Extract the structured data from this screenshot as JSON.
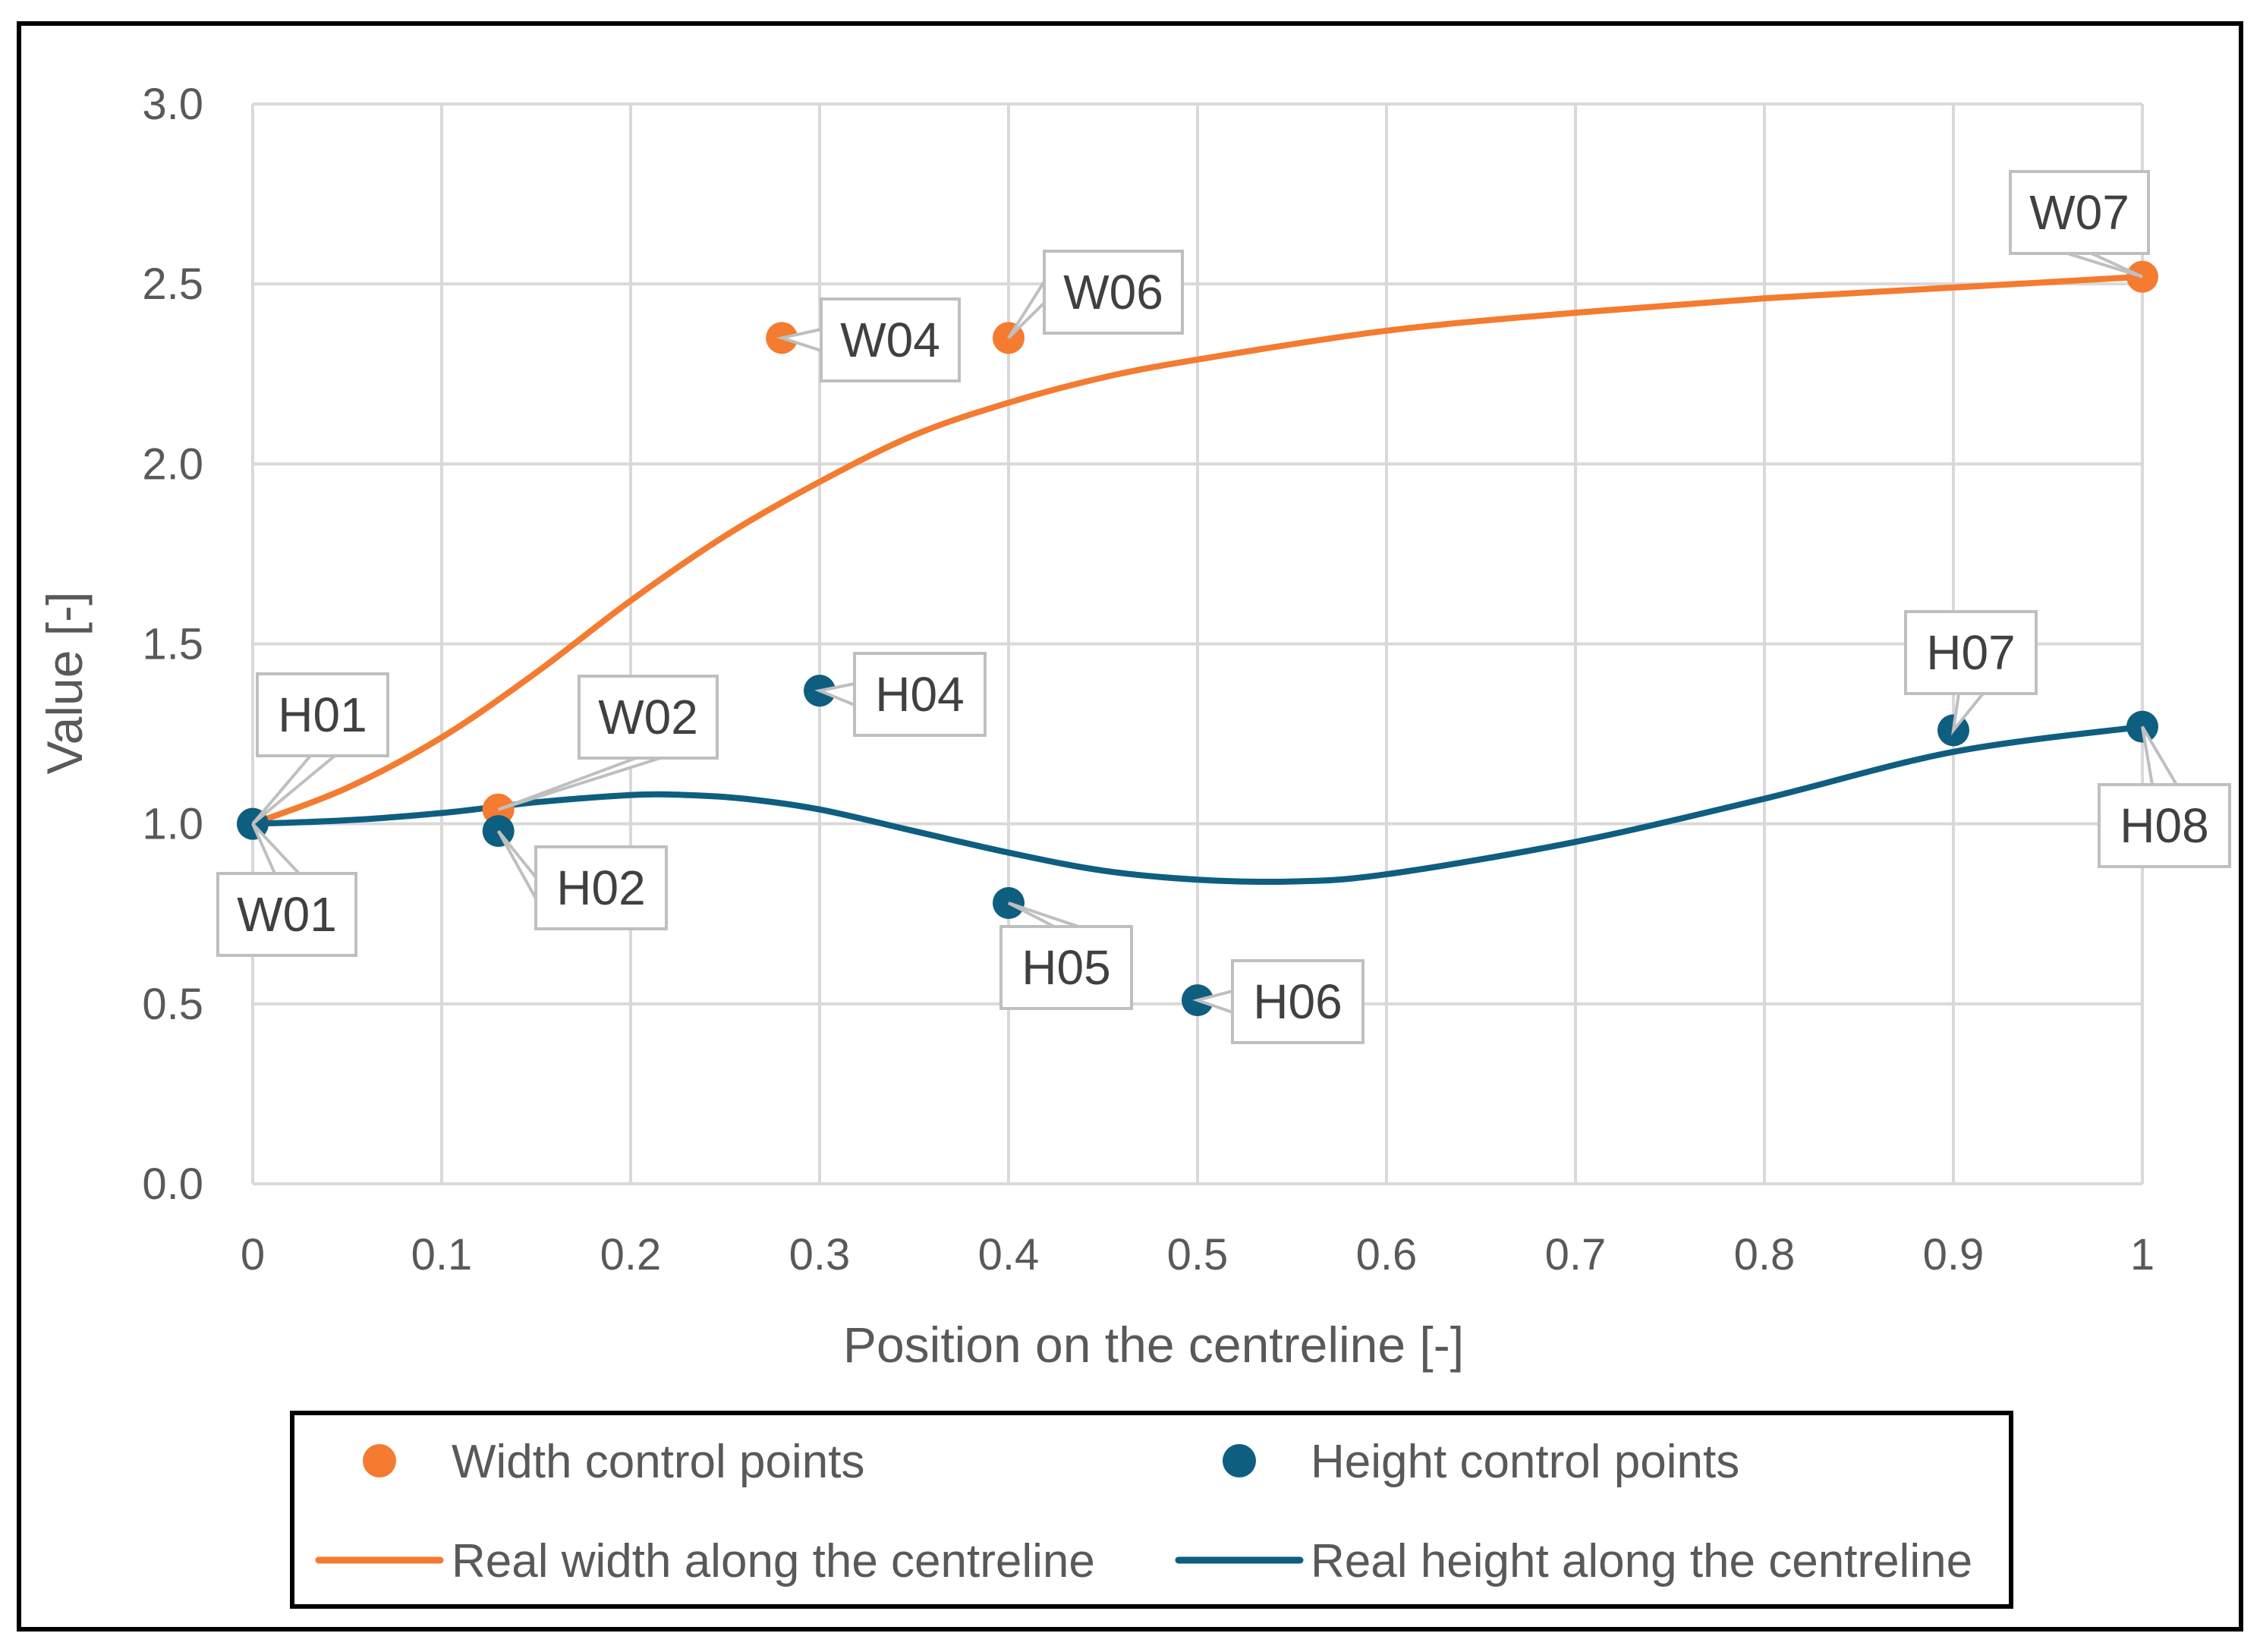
{
  "chart_data": {
    "type": "line",
    "title": "",
    "xlabel": "Position on the centreline [-]",
    "ylabel": "Value [-]",
    "xlim": [
      0,
      1
    ],
    "ylim": [
      0,
      3
    ],
    "x_ticks": [
      "0",
      "0.1",
      "0.2",
      "0.3",
      "0.4",
      "0.5",
      "0.6",
      "0.7",
      "0.8",
      "0.9",
      "1"
    ],
    "y_ticks": [
      "0.0",
      "0.5",
      "1.0",
      "1.5",
      "2.0",
      "2.5",
      "3.0"
    ],
    "grid": true,
    "legend_position": "bottom",
    "colors": {
      "width": "#F47B30",
      "height": "#0E5E80",
      "grid": "#d9d9d9",
      "frame": "#000000"
    },
    "scatter_series": [
      {
        "name": "Width control points",
        "color": "#F47B30",
        "points": [
          {
            "label": "W01",
            "x": 0.0,
            "y": 1.0
          },
          {
            "label": "W02",
            "x": 0.13,
            "y": 1.04
          },
          {
            "label": "W04",
            "x": 0.28,
            "y": 2.35
          },
          {
            "label": "W06",
            "x": 0.4,
            "y": 2.35
          },
          {
            "label": "W07",
            "x": 1.0,
            "y": 2.52
          }
        ]
      },
      {
        "name": "Height control points",
        "color": "#0E5E80",
        "points": [
          {
            "label": "H01",
            "x": 0.0,
            "y": 1.0
          },
          {
            "label": "H02",
            "x": 0.13,
            "y": 0.98
          },
          {
            "label": "H04",
            "x": 0.3,
            "y": 1.37
          },
          {
            "label": "H05",
            "x": 0.4,
            "y": 0.78
          },
          {
            "label": "H06",
            "x": 0.5,
            "y": 0.51
          },
          {
            "label": "H07",
            "x": 0.9,
            "y": 1.26
          },
          {
            "label": "H08",
            "x": 1.0,
            "y": 1.27
          }
        ]
      }
    ],
    "line_series": [
      {
        "name": "Real width along the centreline",
        "color": "#F47B30",
        "x": [
          0,
          0.05,
          0.1,
          0.15,
          0.2,
          0.25,
          0.3,
          0.35,
          0.4,
          0.45,
          0.5,
          0.6,
          0.7,
          0.8,
          0.9,
          1.0
        ],
        "y": [
          1.0,
          1.1,
          1.24,
          1.42,
          1.62,
          1.8,
          1.95,
          2.08,
          2.17,
          2.24,
          2.29,
          2.37,
          2.42,
          2.46,
          2.49,
          2.52
        ]
      },
      {
        "name": "Real height along the centreline",
        "color": "#0E5E80",
        "x": [
          0,
          0.05,
          0.1,
          0.15,
          0.2,
          0.23,
          0.26,
          0.3,
          0.35,
          0.4,
          0.45,
          0.5,
          0.55,
          0.6,
          0.7,
          0.8,
          0.9,
          1.0
        ],
        "y": [
          1.0,
          1.01,
          1.03,
          1.06,
          1.08,
          1.08,
          1.07,
          1.04,
          0.98,
          0.92,
          0.87,
          0.845,
          0.84,
          0.86,
          0.95,
          1.07,
          1.2,
          1.27
        ]
      }
    ],
    "legend": {
      "entries": [
        {
          "label": "Width control points",
          "kind": "marker",
          "color": "#F47B30"
        },
        {
          "label": "Height control points",
          "kind": "marker",
          "color": "#0E5E80"
        },
        {
          "label": "Real width along the centreline",
          "kind": "line",
          "color": "#F47B30"
        },
        {
          "label": "Real height along the centreline",
          "kind": "line",
          "color": "#0E5E80"
        }
      ]
    }
  }
}
